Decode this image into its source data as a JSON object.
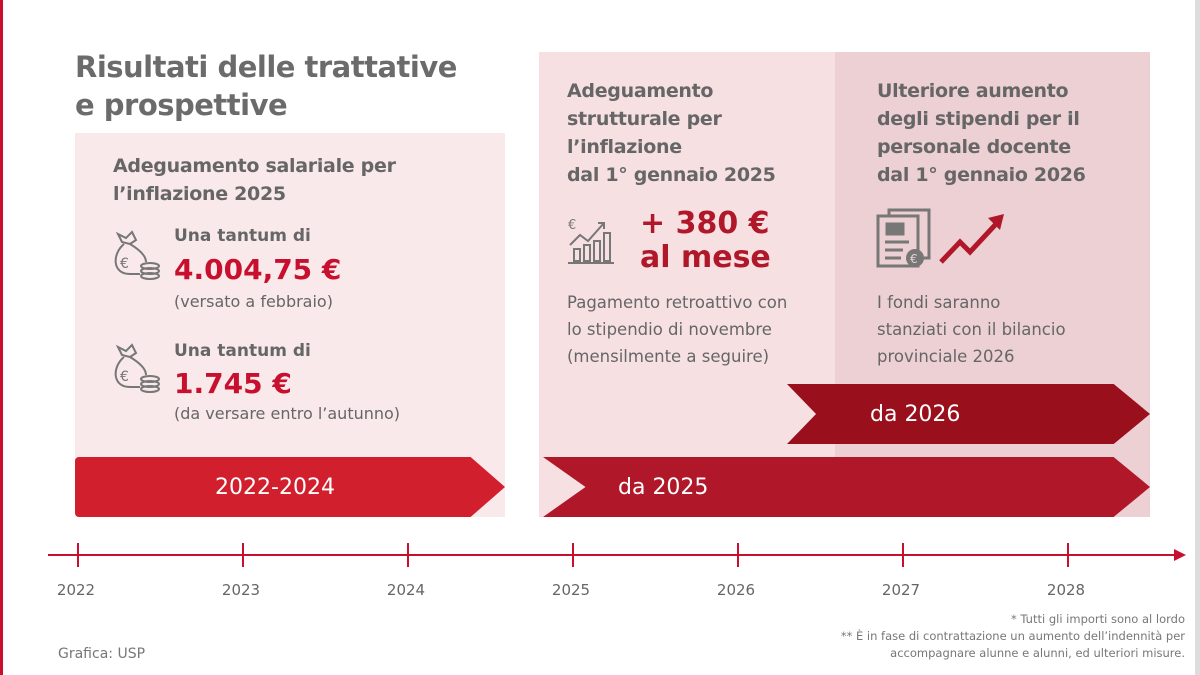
{
  "title": [
    "Risultati delle trattative",
    "e prospettive"
  ],
  "left_panel": {
    "heading": [
      "Adeguamento salariale per",
      "l’inflazione 2025"
    ],
    "items": [
      {
        "icon": "money-bag-coins-icon",
        "label": "Una tantum di",
        "amount": "4.004,75 €",
        "note": "(versato a febbraio)"
      },
      {
        "icon": "money-bag-coins-icon",
        "label": "Una tantum di",
        "amount": "1.745 €",
        "note": "(da versare entro l’autunno)"
      }
    ],
    "arrow_label": "2022-2024"
  },
  "middle_panel": {
    "heading": [
      "Adeguamento",
      "strutturale per",
      "l’inflazione",
      "dal 1° gennaio 2025"
    ],
    "icon": "growth-chart-euro-icon",
    "amount": [
      "+ 380 €",
      "al mese"
    ],
    "body": [
      "Pagamento retroattivo con",
      "lo stipendio di novembre",
      "(mensilmente a seguire)"
    ],
    "arrow_label": "da 2025"
  },
  "right_panel": {
    "heading": [
      "Ulteriore aumento",
      "degli stipendi per il",
      "personale docente",
      "dal 1° gennaio 2026"
    ],
    "icons": [
      "budget-document-icon",
      "trend-up-arrow-icon"
    ],
    "body": [
      "I fondi saranno",
      "stanziati con il bilancio",
      "provinciale 2026"
    ],
    "arrow_label": "da 2026"
  },
  "timeline": {
    "years": [
      "2022",
      "2023",
      "2024",
      "2025",
      "2026",
      "2027",
      "2028"
    ]
  },
  "footnotes": [
    "* Tutti gli importi sono al lordo",
    "** È in fase di contrattazione un aumento dell’indennità per",
    "accompagnare alunne e alunni, ed ulteriori misure."
  ],
  "credit": "Grafica: USP",
  "colors": {
    "accent": "#c8102e",
    "arrow_2022": "#d21f2e",
    "arrow_2025": "#b0182a",
    "arrow_2026": "#9a0f1c"
  }
}
